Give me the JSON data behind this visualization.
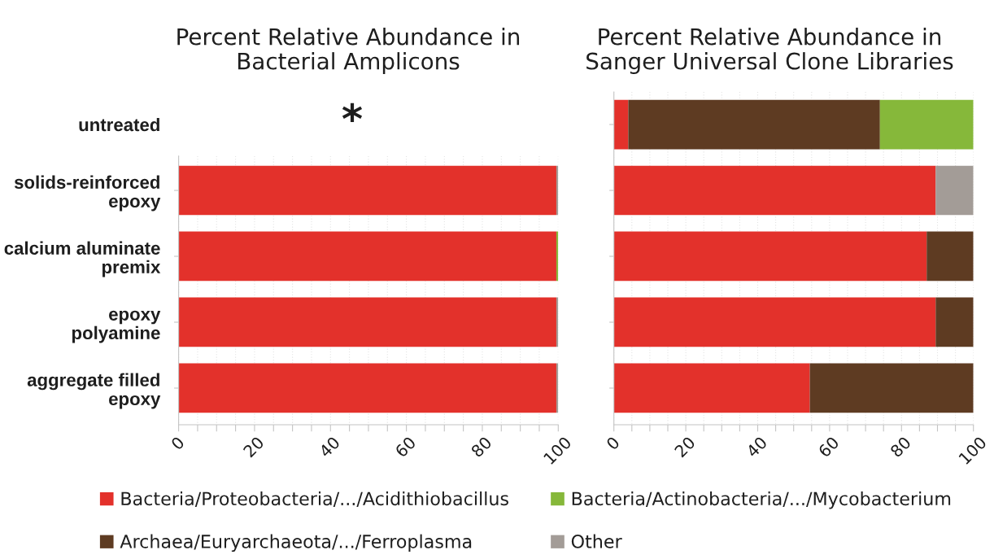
{
  "chart_data": [
    {
      "type": "bar",
      "orientation": "horizontal",
      "stacked": true,
      "title": "Percent Relative Abundance in\nBacterial Amplicons",
      "categories": [
        "untreated",
        "solids-reinforced\nepoxy",
        "calcium aluminate\npremix",
        "epoxy\npolyamine",
        "aggregate filled\nepoxy"
      ],
      "series": [
        {
          "name": "Bacteria/Proteobacteria/.../Acidithiobacillus",
          "color": "#e3312b",
          "values": [
            null,
            99.5,
            99.5,
            99.5,
            99.5
          ]
        },
        {
          "name": "Archaea/Euryarchaeota/.../Ferroplasma",
          "color": "#5e3b22",
          "values": [
            null,
            null,
            null,
            null,
            null
          ]
        },
        {
          "name": "Bacteria/Actinobacteria/.../Mycobacterium",
          "color": "#86b83a",
          "values": [
            null,
            null,
            0.5,
            null,
            null
          ]
        },
        {
          "name": "Other",
          "color": "#a39c97",
          "values": [
            null,
            0.5,
            null,
            0.5,
            0.5
          ]
        }
      ],
      "xlim": [
        0,
        100
      ],
      "xticks": [
        0,
        {
          "value": 5,
          "label": null
        },
        {
          "value": 10,
          "label": null
        },
        {
          "value": 15,
          "label": null
        },
        20,
        {
          "value": 25,
          "label": null
        },
        {
          "value": 30,
          "label": null
        },
        {
          "value": 35,
          "label": null
        },
        40,
        {
          "value": 45,
          "label": null
        },
        {
          "value": 50,
          "label": null
        },
        {
          "value": 55,
          "label": null
        },
        60,
        {
          "value": 65,
          "label": null
        },
        {
          "value": 70,
          "label": null
        },
        {
          "value": 75,
          "label": null
        },
        80,
        {
          "value": 85,
          "label": null
        },
        {
          "value": 90,
          "label": null
        },
        {
          "value": 95,
          "label": null
        },
        100
      ],
      "grid": "x",
      "legend": "bottom",
      "annotations": [
        "*"
      ]
    },
    {
      "type": "bar",
      "orientation": "horizontal",
      "stacked": true,
      "title": "Percent Relative Abundance in\nSanger Universal Clone Libraries",
      "categories": [
        null,
        null,
        null,
        null,
        null
      ],
      "series": [
        {
          "color": "#e3312b",
          "values": [
            4,
            89.5,
            87,
            89.5,
            54.5
          ]
        },
        {
          "color": "#5e3b22",
          "values": [
            70,
            null,
            13,
            10.5,
            45.5
          ]
        },
        {
          "color": "#86b83a",
          "values": [
            26,
            null,
            null,
            null,
            null
          ]
        },
        {
          "color": "#a39c97",
          "values": [
            null,
            10.5,
            null,
            null,
            null
          ]
        }
      ],
      "xlim": [
        0,
        100
      ],
      "xticks": [
        0,
        {
          "value": 5,
          "label": null
        },
        {
          "value": 10,
          "label": null
        },
        {
          "value": 15,
          "label": null
        },
        20,
        {
          "value": 25,
          "label": null
        },
        {
          "value": 30,
          "label": null
        },
        {
          "value": 35,
          "label": null
        },
        40,
        {
          "value": 45,
          "label": null
        },
        {
          "value": 50,
          "label": null
        },
        {
          "value": 55,
          "label": null
        },
        60,
        {
          "value": 65,
          "label": null
        },
        {
          "value": 70,
          "label": null
        },
        {
          "value": 75,
          "label": null
        },
        80,
        {
          "value": 85,
          "label": null
        },
        {
          "value": 90,
          "label": null
        },
        {
          "value": 95,
          "label": null
        },
        100
      ],
      "grid": "x"
    }
  ]
}
